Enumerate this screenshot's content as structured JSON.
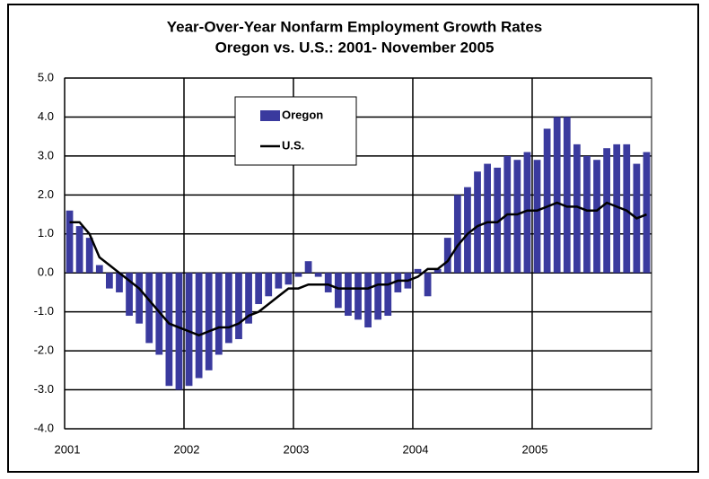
{
  "chart_data": {
    "type": "bar",
    "title": "Year-Over-Year Nonfarm Employment Growth Rates",
    "subtitle": "Oregon vs. U.S.: 2001- November 2005",
    "categories": [
      "2001",
      null,
      null,
      null,
      null,
      null,
      null,
      null,
      null,
      null,
      null,
      null,
      "2002",
      null,
      null,
      null,
      null,
      null,
      null,
      null,
      null,
      null,
      null,
      "2003",
      null,
      null,
      null,
      null,
      null,
      null,
      null,
      null,
      null,
      null,
      null,
      "2004",
      null,
      null,
      null,
      null,
      null,
      null,
      null,
      null,
      null,
      null,
      null,
      "2005",
      null,
      null,
      null,
      null,
      null,
      null,
      null,
      null,
      null,
      null,
      null
    ],
    "series": [
      {
        "name": "Oregon",
        "type": "bar",
        "color": "#3a3a9e",
        "values": [
          1.6,
          1.2,
          0.9,
          0.2,
          -0.4,
          -0.5,
          -1.1,
          -1.3,
          -1.8,
          -2.1,
          -2.9,
          -3.0,
          -2.9,
          -2.7,
          -2.5,
          -2.1,
          -1.8,
          -1.7,
          -1.3,
          -0.8,
          -0.6,
          -0.4,
          -0.3,
          -0.1,
          0.3,
          -0.1,
          -0.5,
          -0.9,
          -1.1,
          -1.2,
          -1.4,
          -1.2,
          -1.1,
          -0.5,
          -0.4,
          0.1,
          -0.6,
          0.1,
          0.9,
          2.0,
          2.2,
          2.6,
          2.8,
          2.7,
          3.0,
          2.9,
          3.1,
          2.9,
          3.7,
          4.0,
          4.0,
          3.3,
          3.0,
          2.9,
          3.2,
          3.3,
          3.3,
          2.8,
          3.1
        ]
      },
      {
        "name": "U.S.",
        "type": "line",
        "color": "#000000",
        "values": [
          1.3,
          1.3,
          1.0,
          0.4,
          0.2,
          0.0,
          -0.2,
          -0.4,
          -0.7,
          -1.0,
          -1.3,
          -1.4,
          -1.5,
          -1.6,
          -1.5,
          -1.4,
          -1.4,
          -1.3,
          -1.1,
          -1.0,
          -0.8,
          -0.6,
          -0.4,
          -0.4,
          -0.3,
          -0.3,
          -0.3,
          -0.4,
          -0.4,
          -0.4,
          -0.4,
          -0.3,
          -0.3,
          -0.2,
          -0.2,
          -0.1,
          0.1,
          0.1,
          0.3,
          0.7,
          1.0,
          1.2,
          1.3,
          1.3,
          1.5,
          1.5,
          1.6,
          1.6,
          1.7,
          1.8,
          1.7,
          1.7,
          1.6,
          1.6,
          1.8,
          1.7,
          1.6,
          1.4,
          1.5
        ]
      }
    ],
    "ylim": [
      -4,
      5
    ],
    "yticks": [
      {
        "value": -4,
        "label": "-4.0"
      },
      {
        "value": -3,
        "label": "-3.0"
      },
      {
        "value": -2,
        "label": "-2.0"
      },
      {
        "value": -1,
        "label": "-1.0"
      },
      {
        "value": 0,
        "label": "0.0"
      },
      {
        "value": 1,
        "label": "1.0"
      },
      {
        "value": 2,
        "label": "2.0"
      },
      {
        "value": 3,
        "label": "3.0"
      },
      {
        "value": 4,
        "label": "4.0"
      },
      {
        "value": 5,
        "label": "5.0"
      }
    ],
    "grid": true
  }
}
